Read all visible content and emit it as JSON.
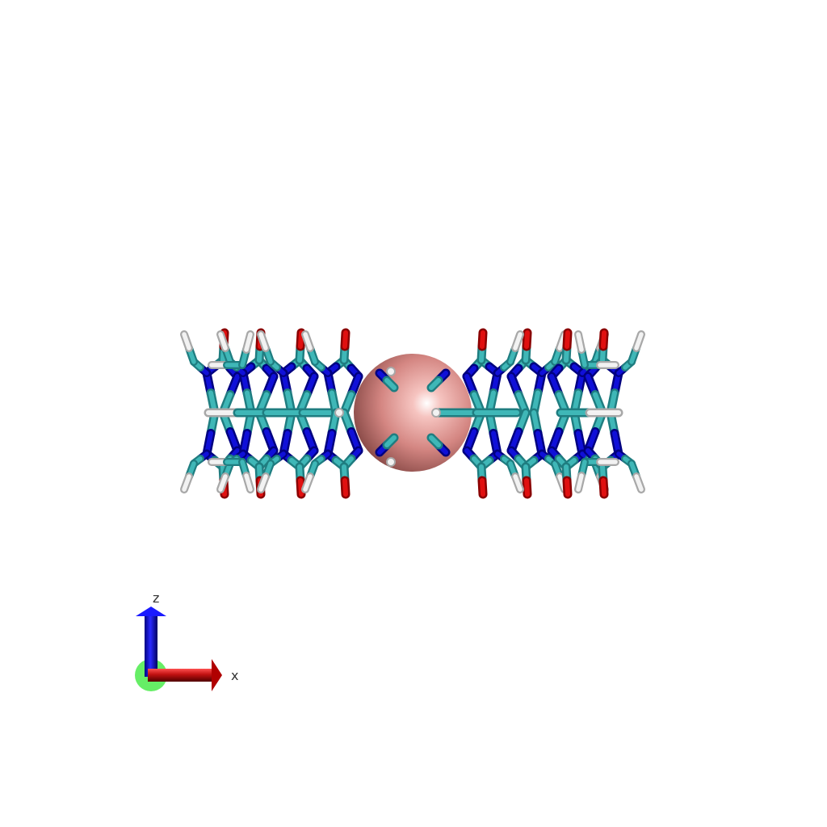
{
  "viewer": {
    "molecule": {
      "colors": {
        "carbon": "#3fb7b7",
        "carbon_dark": "#1f7d80",
        "nitrogen": "#1010d8",
        "nitrogen_dark": "#000080",
        "oxygen": "#e01010",
        "oxygen_dark": "#8a0000",
        "hydrogen": "#f2f2f2",
        "hydrogen_dark": "#a8a8a8",
        "ion": "#e49b96",
        "ion_dark": "#9c5d5a"
      }
    },
    "axes": {
      "z_label": "z",
      "x_label": "x",
      "colors": {
        "z": "#1a1aff",
        "x": "#e01010",
        "y": "#66ee66"
      }
    }
  }
}
